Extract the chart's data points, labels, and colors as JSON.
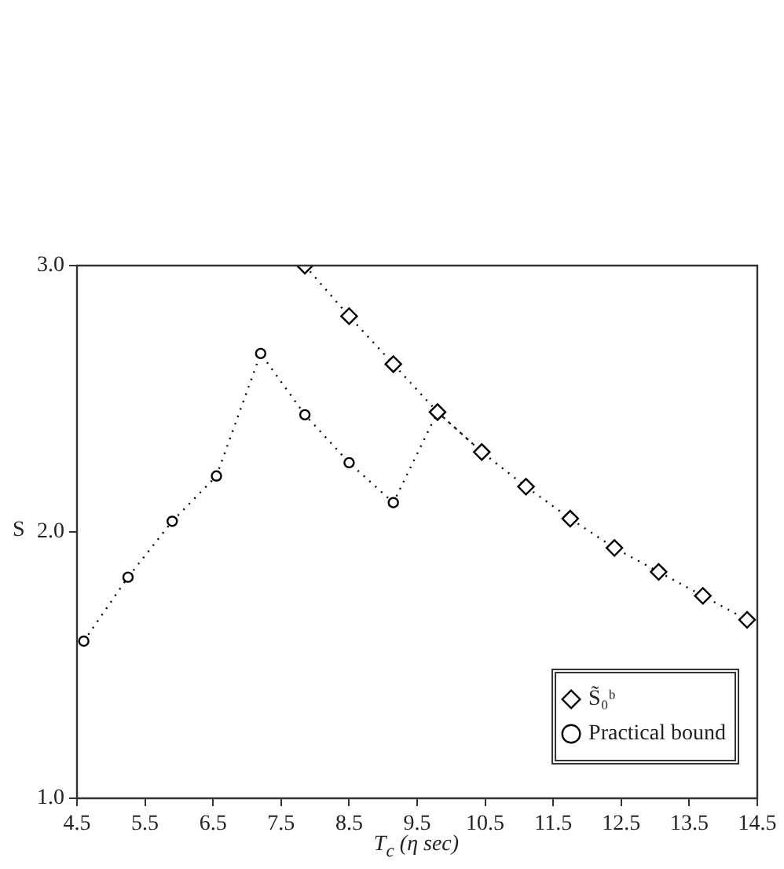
{
  "chart_data": {
    "type": "line",
    "xlabel": "T$_{c}$ (η sec)",
    "ylabel": "S",
    "series": [
      {
        "name": "S̃₀ᵇ",
        "color": "#000000",
        "marker": "diamond",
        "x": [
          7.85,
          8.5,
          9.15,
          9.8,
          10.45,
          11.1,
          11.75,
          12.4,
          13.05,
          13.7,
          14.35
        ],
        "values": [
          3.0,
          2.81,
          2.63,
          2.45,
          2.3,
          2.17,
          2.05,
          1.94,
          1.85,
          1.76,
          1.67
        ]
      },
      {
        "name": "Practical bound",
        "color": "#000000",
        "marker": "circle",
        "x": [
          4.6,
          5.25,
          5.9,
          6.55,
          7.2,
          7.85,
          8.5,
          9.15,
          9.8,
          10.45
        ],
        "values": [
          1.59,
          1.83,
          2.04,
          2.21,
          2.67,
          2.44,
          2.26,
          2.11,
          2.45,
          2.3
        ]
      }
    ],
    "line_style": "dotted",
    "xlim": [
      4.5,
      14.5
    ],
    "xticks": [
      4.5,
      5.5,
      6.5,
      7.5,
      8.5,
      9.5,
      10.5,
      11.5,
      12.5,
      13.5,
      14.5
    ],
    "ylim": [
      1,
      3
    ],
    "yticks": [
      {
        "value": 1,
        "label": "1.0"
      },
      {
        "value": 2,
        "label": "2.0"
      },
      {
        "value": 3,
        "label": "3.0"
      }
    ],
    "grid": false,
    "legend": "bottom right"
  }
}
